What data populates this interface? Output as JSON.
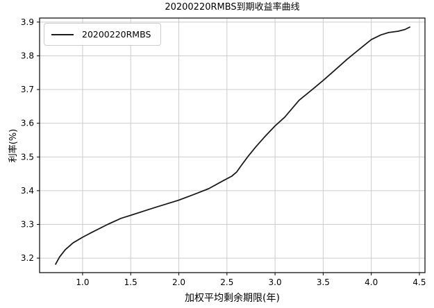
{
  "title": "20200220RMBS到期收益率曲线",
  "legend": {
    "label": "20200220RMBS"
  },
  "colors": {
    "curve": "#1a1a1a",
    "grid": "#cccccc",
    "spine": "#000000",
    "background": "#ffffff",
    "legend_border": "#cccccc"
  },
  "chart_data": {
    "type": "line",
    "title": "20200220RMBS到期收益率曲线",
    "xlabel": "加权平均剩余期限(年)",
    "ylabel": "利率(%)",
    "xlim": [
      0.553,
      4.558
    ],
    "ylim": [
      3.157,
      3.912
    ],
    "x_ticks": [
      1.0,
      1.5,
      2.0,
      2.5,
      3.0,
      3.5,
      4.0,
      4.5
    ],
    "y_ticks": [
      3.2,
      3.3,
      3.4,
      3.5,
      3.6,
      3.7,
      3.8,
      3.9
    ],
    "grid": true,
    "legend_position": "upper-left",
    "series": [
      {
        "name": "20200220RMBS",
        "color": "#1a1a1a",
        "points": [
          [
            0.72,
            3.182
          ],
          [
            0.76,
            3.203
          ],
          [
            0.82,
            3.225
          ],
          [
            0.9,
            3.245
          ],
          [
            1.0,
            3.262
          ],
          [
            1.1,
            3.277
          ],
          [
            1.26,
            3.3
          ],
          [
            1.4,
            3.318
          ],
          [
            1.5,
            3.327
          ],
          [
            1.75,
            3.35
          ],
          [
            2.0,
            3.372
          ],
          [
            2.15,
            3.388
          ],
          [
            2.31,
            3.406
          ],
          [
            2.45,
            3.428
          ],
          [
            2.55,
            3.443
          ],
          [
            2.6,
            3.455
          ],
          [
            2.65,
            3.475
          ],
          [
            2.72,
            3.502
          ],
          [
            2.8,
            3.53
          ],
          [
            2.9,
            3.562
          ],
          [
            3.0,
            3.592
          ],
          [
            3.1,
            3.618
          ],
          [
            3.25,
            3.668
          ],
          [
            3.4,
            3.703
          ],
          [
            3.5,
            3.727
          ],
          [
            3.6,
            3.752
          ],
          [
            3.75,
            3.79
          ],
          [
            3.9,
            3.825
          ],
          [
            4.0,
            3.848
          ],
          [
            4.1,
            3.862
          ],
          [
            4.18,
            3.869
          ],
          [
            4.28,
            3.873
          ],
          [
            4.35,
            3.878
          ],
          [
            4.4,
            3.885
          ]
        ]
      }
    ]
  }
}
